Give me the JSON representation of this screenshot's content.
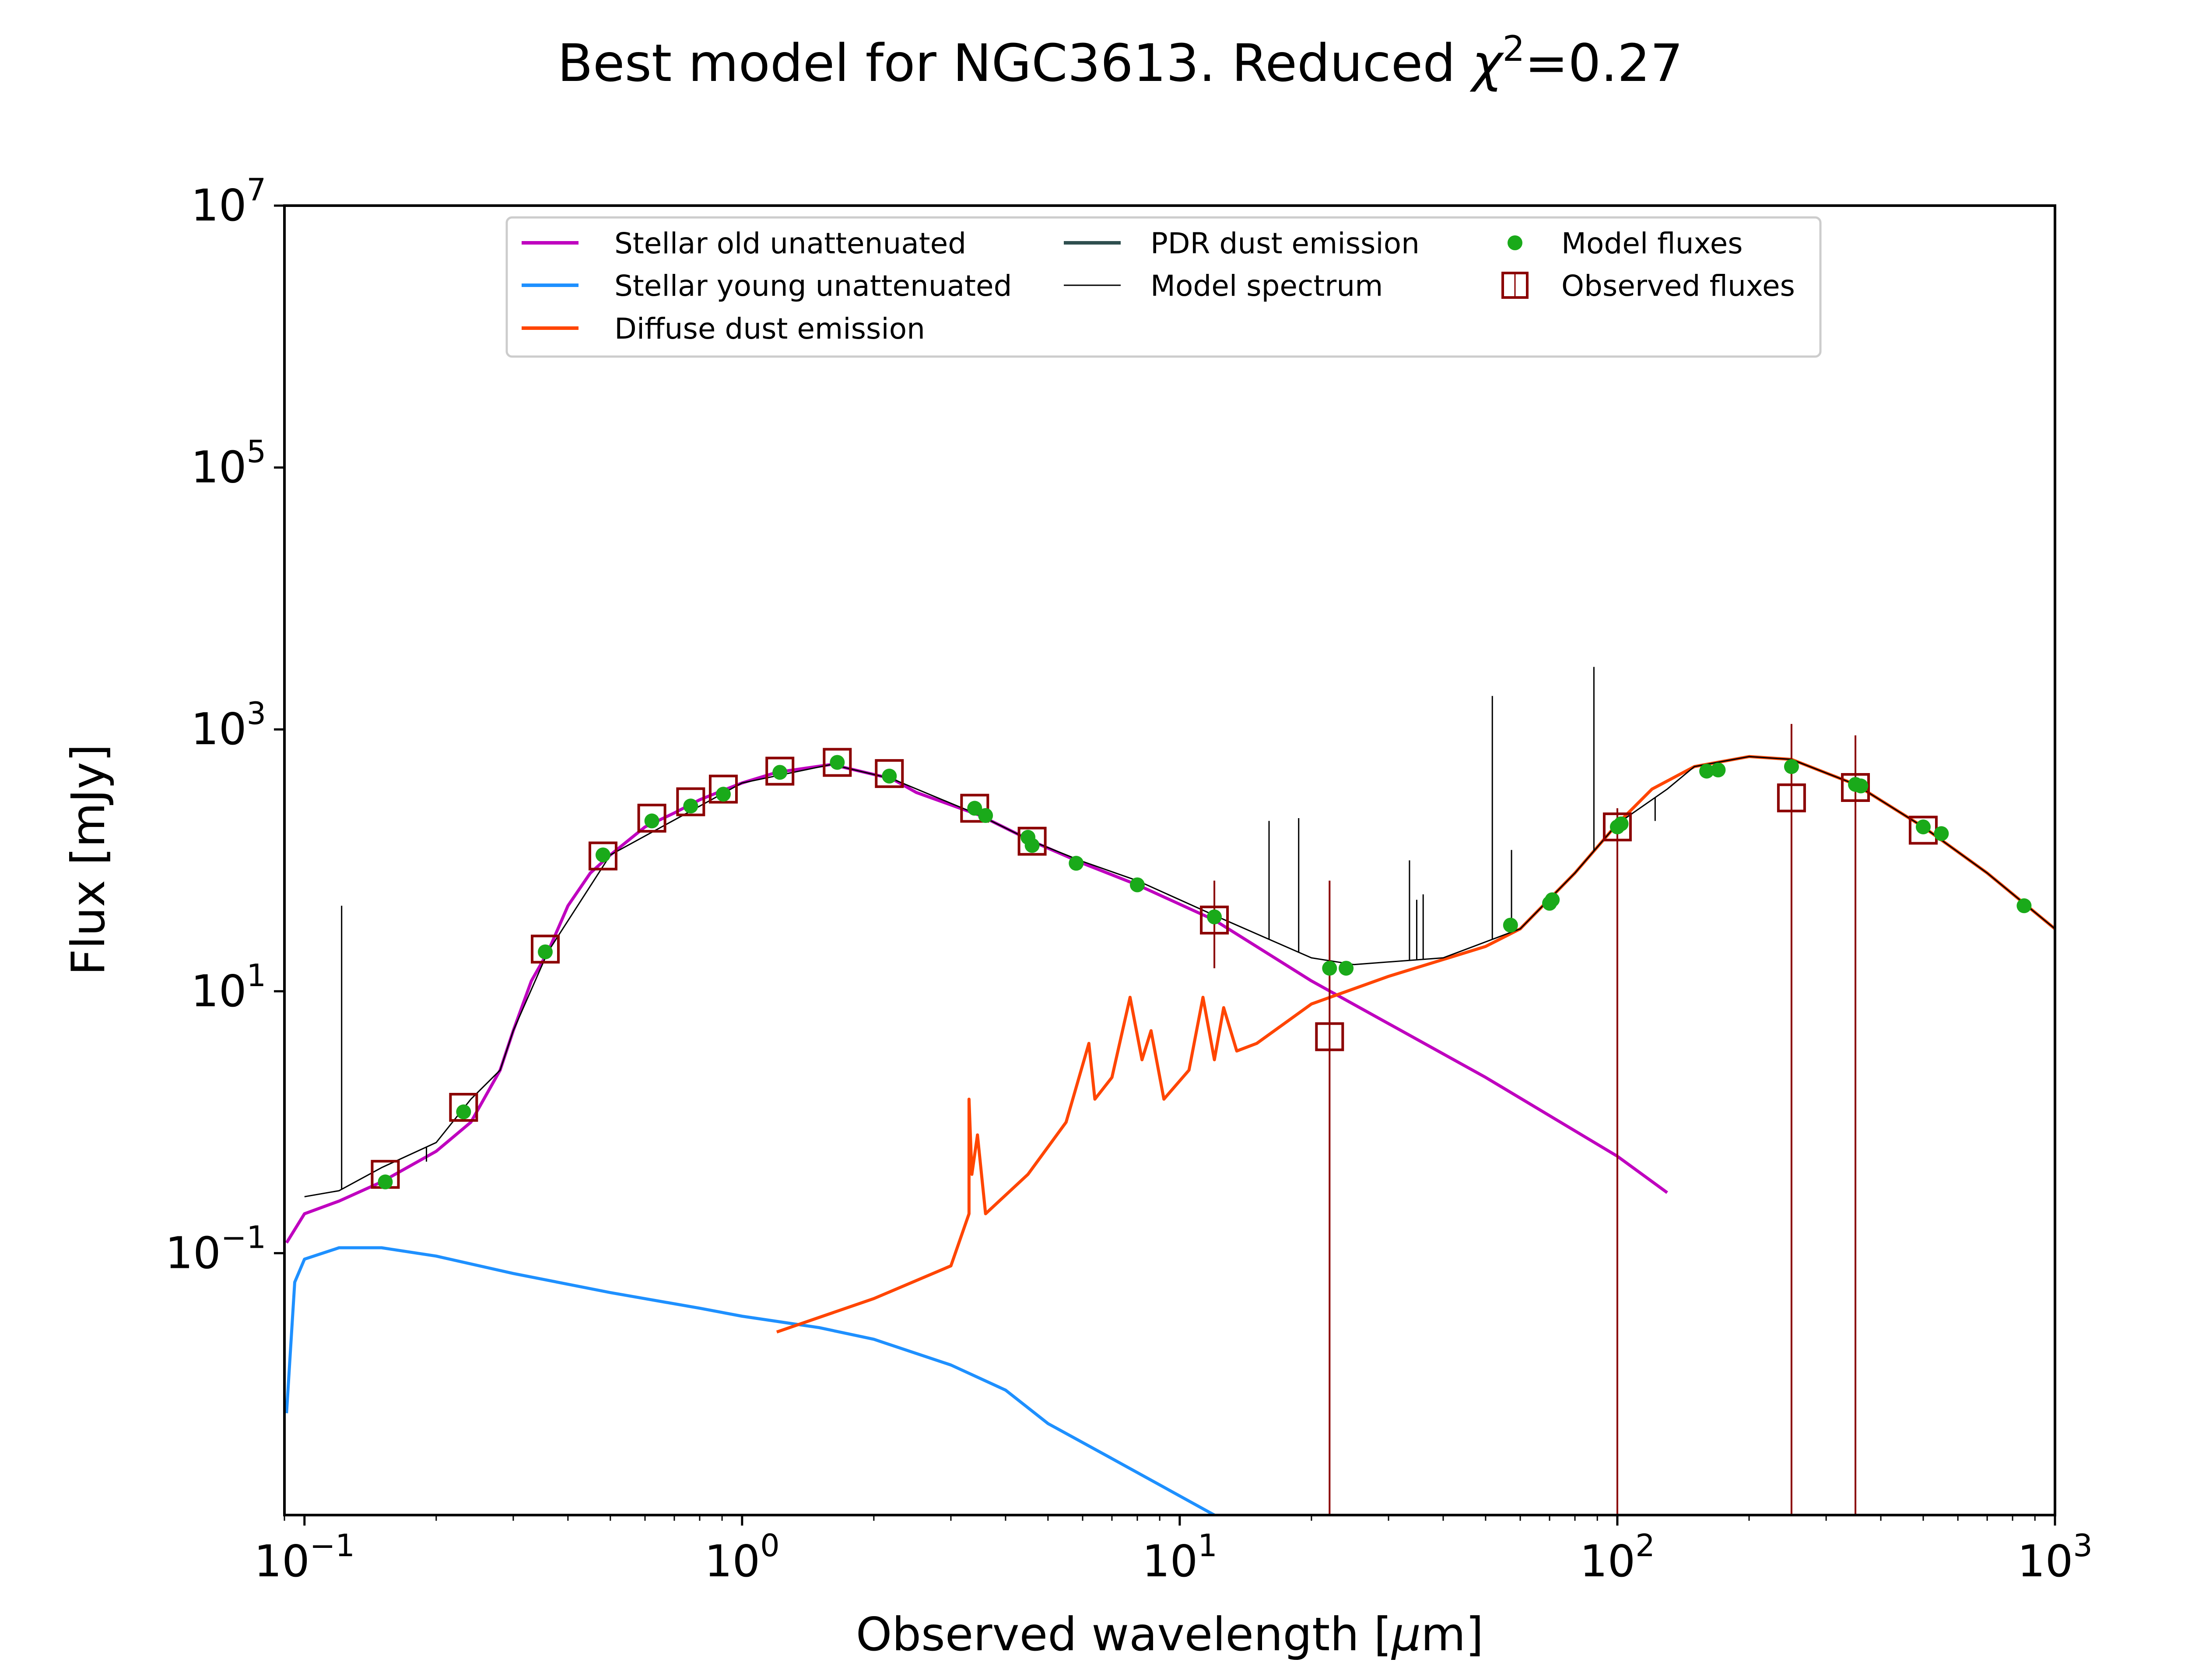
{
  "chart_data": {
    "type": "line",
    "title": "Best model for NGC3613. Reduced χ²=0.27",
    "title_parts": {
      "main": "Best model for NGC3613. Reduced ",
      "chi": "χ",
      "sup": "2",
      "value": "=0.27"
    },
    "xlabel": "Observed wavelength [μm]",
    "xlabel_parts": {
      "main": "Observed wavelength [",
      "mu": "μ",
      "end": "m]"
    },
    "ylabel": "Flux [mJy]",
    "xscale": "log",
    "yscale": "log",
    "xlim": [
      0.09,
      1000
    ],
    "ylim": [
      0.001,
      10000000
    ],
    "xticks": [
      {
        "value": 0.1,
        "base": "10",
        "exp": "−1"
      },
      {
        "value": 1,
        "base": "10",
        "exp": "0"
      },
      {
        "value": 10,
        "base": "10",
        "exp": "1"
      },
      {
        "value": 100,
        "base": "10",
        "exp": "2"
      },
      {
        "value": 1000,
        "base": "10",
        "exp": "3"
      }
    ],
    "yticks": [
      {
        "value": 0.1,
        "base": "10",
        "exp": "−1"
      },
      {
        "value": 10,
        "base": "10",
        "exp": "1"
      },
      {
        "value": 1000,
        "base": "10",
        "exp": "3"
      },
      {
        "value": 100000,
        "base": "10",
        "exp": "5"
      },
      {
        "value": 10000000,
        "base": "10",
        "exp": "7"
      }
    ],
    "grid": false,
    "legend": {
      "placement": "top-center",
      "entries": [
        {
          "label": "Stellar old unattenuated",
          "kind": "line",
          "color": "#bf00bf"
        },
        {
          "label": "Stellar young unattenuated",
          "kind": "line",
          "color": "#1e90ff"
        },
        {
          "label": "Diffuse dust emission",
          "kind": "line",
          "color": "#ff4500"
        },
        {
          "label": "PDR dust emission",
          "kind": "line",
          "color": "#2f4f4f"
        },
        {
          "label": "Model spectrum",
          "kind": "thin-line",
          "color": "#000000"
        },
        {
          "label": "Model fluxes",
          "kind": "dot",
          "color": "#1aaa1a"
        },
        {
          "label": "Observed fluxes",
          "kind": "square",
          "color": "#8b0000"
        }
      ]
    },
    "series": [
      {
        "name": "Stellar old unattenuated",
        "color": "#bf00bf",
        "points": [
          [
            0.091,
            0.12
          ],
          [
            0.1,
            0.2
          ],
          [
            0.12,
            0.25
          ],
          [
            0.15,
            0.35
          ],
          [
            0.2,
            0.6
          ],
          [
            0.24,
            1.0
          ],
          [
            0.28,
            2.5
          ],
          [
            0.3,
            5.0
          ],
          [
            0.33,
            12
          ],
          [
            0.36,
            20
          ],
          [
            0.4,
            45
          ],
          [
            0.45,
            80
          ],
          [
            0.5,
            110
          ],
          [
            0.6,
            180
          ],
          [
            0.7,
            230
          ],
          [
            0.8,
            290
          ],
          [
            0.9,
            340
          ],
          [
            1.0,
            390
          ],
          [
            1.2,
            470
          ],
          [
            1.6,
            540
          ],
          [
            2.2,
            420
          ],
          [
            2.5,
            330
          ],
          [
            3.5,
            220
          ],
          [
            4.6,
            140
          ],
          [
            6,
            95
          ],
          [
            8,
            65
          ],
          [
            12,
            35
          ],
          [
            20,
            12
          ],
          [
            50,
            2.2
          ],
          [
            100,
            0.55
          ],
          [
            130,
            0.29
          ]
        ]
      },
      {
        "name": "Stellar young unattenuated",
        "color": "#1e90ff",
        "points": [
          [
            0.091,
            0.006
          ],
          [
            0.095,
            0.06
          ],
          [
            0.1,
            0.09
          ],
          [
            0.12,
            0.11
          ],
          [
            0.15,
            0.11
          ],
          [
            0.2,
            0.095
          ],
          [
            0.3,
            0.07
          ],
          [
            0.5,
            0.05
          ],
          [
            0.8,
            0.038
          ],
          [
            1.0,
            0.033
          ],
          [
            1.5,
            0.027
          ],
          [
            2.0,
            0.022
          ],
          [
            3.0,
            0.014
          ],
          [
            4.0,
            0.009
          ],
          [
            5.0,
            0.005
          ],
          [
            7,
            0.0027
          ],
          [
            10,
            0.0014
          ],
          [
            12,
            0.001
          ]
        ]
      },
      {
        "name": "Diffuse dust emission",
        "color": "#ff4500",
        "points": [
          [
            1.2,
            0.025
          ],
          [
            2.0,
            0.045
          ],
          [
            3.0,
            0.08
          ],
          [
            3.3,
            0.2
          ],
          [
            3.3,
            1.5
          ],
          [
            3.35,
            0.4
          ],
          [
            3.45,
            0.8
          ],
          [
            3.6,
            0.2
          ],
          [
            4.5,
            0.4
          ],
          [
            5.5,
            1.0
          ],
          [
            6.2,
            4.0
          ],
          [
            6.4,
            1.5
          ],
          [
            7.0,
            2.2
          ],
          [
            7.7,
            9.0
          ],
          [
            8.2,
            3.0
          ],
          [
            8.6,
            5.0
          ],
          [
            9.2,
            1.5
          ],
          [
            10.5,
            2.5
          ],
          [
            11.3,
            9.0
          ],
          [
            12,
            3.0
          ],
          [
            12.6,
            7.5
          ],
          [
            13.5,
            3.5
          ],
          [
            15,
            4.0
          ],
          [
            20,
            8.0
          ],
          [
            30,
            13
          ],
          [
            50,
            22
          ],
          [
            60,
            30
          ],
          [
            80,
            80
          ],
          [
            100,
            190
          ],
          [
            120,
            350
          ],
          [
            150,
            520
          ],
          [
            200,
            620
          ],
          [
            250,
            590
          ],
          [
            350,
            380
          ],
          [
            500,
            180
          ],
          [
            700,
            80
          ],
          [
            1000,
            30
          ]
        ]
      },
      {
        "name": "Model spectrum",
        "color": "#000000",
        "points": [
          [
            0.1,
            0.27
          ],
          [
            0.12,
            0.3
          ],
          [
            0.15,
            0.45
          ],
          [
            0.2,
            0.7
          ],
          [
            0.24,
            1.5
          ],
          [
            0.28,
            2.5
          ],
          [
            0.3,
            5.0
          ],
          [
            0.36,
            20
          ],
          [
            0.5,
            110
          ],
          [
            1.0,
            390
          ],
          [
            1.6,
            540
          ],
          [
            2.2,
            420
          ],
          [
            3.5,
            220
          ],
          [
            4.6,
            140
          ],
          [
            6,
            98
          ],
          [
            8,
            70
          ],
          [
            12,
            38
          ],
          [
            20,
            18
          ],
          [
            25,
            16
          ],
          [
            40,
            18
          ],
          [
            60,
            30
          ],
          [
            80,
            80
          ],
          [
            100,
            190
          ],
          [
            130,
            350
          ],
          [
            150,
            520
          ],
          [
            200,
            620
          ],
          [
            250,
            590
          ],
          [
            350,
            380
          ],
          [
            500,
            180
          ],
          [
            700,
            80
          ],
          [
            1000,
            30
          ]
        ]
      }
    ],
    "spectral_lines": [
      [
        0.1216,
        45
      ],
      [
        0.19,
        0.5
      ],
      [
        16,
        200
      ],
      [
        18.7,
        210
      ],
      [
        33.5,
        100
      ],
      [
        34.8,
        50
      ],
      [
        36,
        55
      ],
      [
        51.8,
        1800
      ],
      [
        57.3,
        120
      ],
      [
        88.4,
        3000
      ],
      [
        122,
        200
      ]
    ],
    "model_fluxes": [
      [
        0.153,
        0.35
      ],
      [
        0.231,
        1.2
      ],
      [
        0.355,
        20
      ],
      [
        0.481,
        110
      ],
      [
        0.622,
        200
      ],
      [
        0.763,
        260
      ],
      [
        0.906,
        320
      ],
      [
        1.22,
        470
      ],
      [
        1.65,
        560
      ],
      [
        2.17,
        440
      ],
      [
        3.4,
        250
      ],
      [
        3.6,
        220
      ],
      [
        4.5,
        150
      ],
      [
        4.6,
        130
      ],
      [
        5.8,
        95
      ],
      [
        8,
        65
      ],
      [
        12,
        37
      ],
      [
        22,
        15
      ],
      [
        24,
        15
      ],
      [
        57,
        32
      ],
      [
        70,
        47
      ],
      [
        71,
        50
      ],
      [
        100,
        180
      ],
      [
        102,
        190
      ],
      [
        160,
        480
      ],
      [
        170,
        490
      ],
      [
        250,
        520
      ],
      [
        350,
        380
      ],
      [
        360,
        370
      ],
      [
        500,
        180
      ],
      [
        550,
        160
      ],
      [
        850,
        45
      ]
    ],
    "observed_fluxes": [
      {
        "x": 0.153,
        "y": 0.4
      },
      {
        "x": 0.231,
        "y": 1.3
      },
      {
        "x": 0.355,
        "y": 21
      },
      {
        "x": 0.481,
        "y": 108
      },
      {
        "x": 0.622,
        "y": 210
      },
      {
        "x": 0.763,
        "y": 280
      },
      {
        "x": 0.906,
        "y": 350
      },
      {
        "x": 1.22,
        "y": 480
      },
      {
        "x": 1.65,
        "y": 560
      },
      {
        "x": 2.17,
        "y": 460
      },
      {
        "x": 3.4,
        "y": 250
      },
      {
        "x": 4.6,
        "y": 140
      },
      {
        "x": 12,
        "y": 35,
        "err_lo": 15,
        "err_hi": 70
      },
      {
        "x": 22,
        "y": 4.5,
        "err_lo": 0.001,
        "err_hi": 70
      },
      {
        "x": 100,
        "y": 180,
        "err_lo": 0.001,
        "err_hi": 250
      },
      {
        "x": 250,
        "y": 300,
        "err_lo": 0.001,
        "err_hi": 1100
      },
      {
        "x": 350,
        "y": 360,
        "err_lo": 0.001,
        "err_hi": 900
      },
      {
        "x": 500,
        "y": 170
      }
    ]
  }
}
